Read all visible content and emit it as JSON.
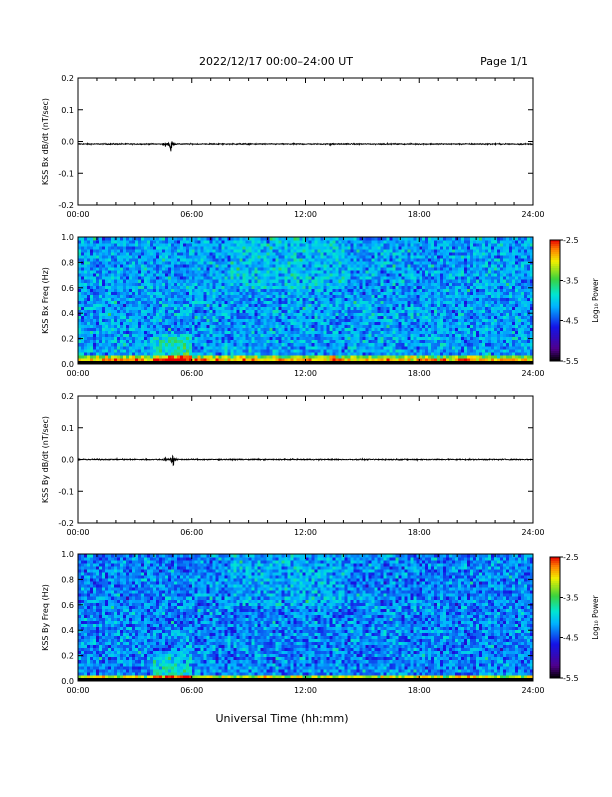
{
  "header": {
    "title": "2022/12/17  00:00–24:00 UT",
    "page": "Page 1/1"
  },
  "footer": {
    "xlabel": "Universal Time (hh:mm)"
  },
  "colors": {
    "trace": "#000000",
    "background": "#ffffff"
  },
  "chart_data": [
    {
      "type": "line",
      "id": "bx-waveform",
      "ylabel": "KSS Bx dB/dt (nT/sec)",
      "xlim": [
        0,
        24
      ],
      "ylim": [
        -0.2,
        0.2
      ],
      "x_ticks": [
        "00:00",
        "06:00",
        "12:00",
        "18:00",
        "24:00"
      ],
      "y_ticks": [
        "0.2",
        "0.1",
        "0.0",
        "-0.1",
        "-0.2"
      ],
      "baseline": -0.008,
      "noise_amplitude": 0.003,
      "events": [
        {
          "x": 4.6,
          "amplitude": 0.012
        },
        {
          "x": 4.9,
          "amplitude": 0.025
        },
        {
          "x": 13.3,
          "amplitude": 0.006
        }
      ]
    },
    {
      "type": "heatmap",
      "id": "bx-spectrogram",
      "ylabel": "KSS Bx Freq (Hz)",
      "xlim": [
        0,
        24
      ],
      "ylim": [
        0,
        1.0
      ],
      "x_ticks": [
        "00:00",
        "06:00",
        "12:00",
        "18:00",
        "24:00"
      ],
      "y_ticks": [
        "1.0",
        "0.8",
        "0.6",
        "0.4",
        "0.2",
        "0.0"
      ],
      "colorbar": {
        "label": "Log₁₀ Power",
        "ticks": [
          "-2.5",
          "-3.5",
          "-4.5",
          "-5.5"
        ],
        "range": [
          -5.5,
          -2.5
        ]
      },
      "typical_log_power": -4.2,
      "low_freq_enhancement_below_hz": 0.06,
      "enhanced_interval": [
        4.0,
        6.0
      ]
    },
    {
      "type": "line",
      "id": "by-waveform",
      "ylabel": "KSS By dB/dt (nT/sec)",
      "xlim": [
        0,
        24
      ],
      "ylim": [
        -0.2,
        0.2
      ],
      "x_ticks": [
        "00:00",
        "06:00",
        "12:00",
        "18:00",
        "24:00"
      ],
      "y_ticks": [
        "0.2",
        "0.1",
        "0.0",
        "-0.1",
        "-0.2"
      ],
      "baseline": 0.0,
      "noise_amplitude": 0.003,
      "events": [
        {
          "x": 4.6,
          "amplitude": 0.01
        },
        {
          "x": 5.0,
          "amplitude": 0.028
        }
      ]
    },
    {
      "type": "heatmap",
      "id": "by-spectrogram",
      "ylabel": "KSS By Freq (Hz)",
      "xlim": [
        0,
        24
      ],
      "ylim": [
        0,
        1.0
      ],
      "x_ticks": [
        "00:00",
        "06:00",
        "12:00",
        "18:00",
        "24:00"
      ],
      "y_ticks": [
        "1.0",
        "0.8",
        "0.6",
        "0.4",
        "0.2",
        "0.0"
      ],
      "colorbar": {
        "label": "Log₁₀ Power",
        "ticks": [
          "-2.5",
          "-3.5",
          "-4.5",
          "-5.5"
        ],
        "range": [
          -5.5,
          -2.5
        ]
      },
      "typical_log_power": -4.3,
      "low_freq_enhancement_below_hz": 0.05,
      "enhanced_interval": [
        4.0,
        6.0
      ]
    }
  ]
}
